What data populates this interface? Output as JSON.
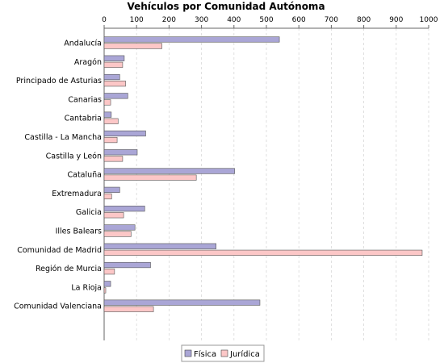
{
  "chart_data": {
    "type": "bar",
    "orientation": "horizontal",
    "title": "Vehículos por Comunidad Autónoma",
    "xlabel": "",
    "ylabel": "",
    "xlim": [
      0,
      1000
    ],
    "xticks": [
      0,
      100,
      200,
      300,
      400,
      500,
      600,
      700,
      800,
      900,
      1000
    ],
    "grid": true,
    "legend_position": "bottom",
    "categories": [
      "Andalucía",
      "Aragón",
      "Principado de Asturias",
      "Canarias",
      "Cantabria",
      "Castilla - La Mancha",
      "Castilla y León",
      "Cataluña",
      "Extremadura",
      "Galicia",
      "Illes Balears",
      "Comunidad de Madrid",
      "Región de Murcia",
      "La Rioja",
      "Comunidad Valenciana"
    ],
    "series": [
      {
        "name": "Física",
        "color": "#aaa6d6",
        "values": [
          540,
          62,
          48,
          73,
          22,
          128,
          102,
          402,
          48,
          125,
          95,
          345,
          143,
          20,
          480
        ]
      },
      {
        "name": "Jurídica",
        "color": "#fcc7c7",
        "values": [
          178,
          57,
          66,
          20,
          43,
          40,
          57,
          284,
          23,
          60,
          83,
          980,
          32,
          5,
          152
        ]
      }
    ]
  }
}
